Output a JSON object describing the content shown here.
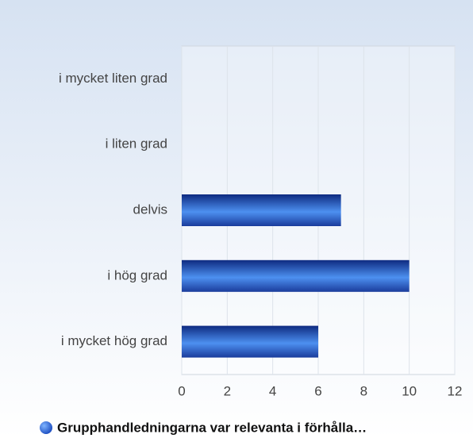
{
  "chart_data": {
    "type": "bar",
    "orientation": "horizontal",
    "categories": [
      "i mycket liten grad",
      "i liten grad",
      "delvis",
      "i hög grad",
      "i mycket hög grad"
    ],
    "series": [
      {
        "name": "Grupphandledningarna var relevanta i förhålla…",
        "color": "#2a6ad8",
        "values": [
          0,
          0,
          7,
          10,
          6
        ]
      }
    ],
    "xlim": [
      0,
      12
    ],
    "xticks": [
      0,
      2,
      4,
      6,
      8,
      10,
      12
    ],
    "grid": true,
    "legend": "bottom"
  }
}
